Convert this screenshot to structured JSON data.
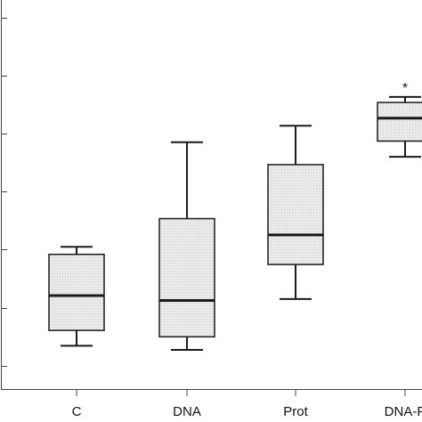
{
  "chart_data": {
    "type": "box",
    "categories": [
      "C",
      "DNA",
      "Prot",
      "DNA-P"
    ],
    "boxes": [
      {
        "whisker_low": 0.69,
        "q1": 1.22,
        "median": 2.42,
        "q3": 3.84,
        "whisker_high": 4.1,
        "annotation": ""
      },
      {
        "whisker_low": 0.55,
        "q1": 1.0,
        "median": 2.25,
        "q3": 5.07,
        "whisker_high": 7.7,
        "annotation": ""
      },
      {
        "whisker_low": 2.3,
        "q1": 3.49,
        "median": 4.51,
        "q3": 6.93,
        "whisker_high": 8.27,
        "annotation": ""
      },
      {
        "whisker_low": 7.2,
        "q1": 7.74,
        "median": 8.53,
        "q3": 9.07,
        "whisker_high": 9.26,
        "annotation": "*"
      }
    ],
    "ylim": [
      -0.8,
      12.6
    ],
    "grid": false,
    "legend": "none",
    "colors": {
      "box_fill": "#ebebeb",
      "stroke": "#1a1a1a",
      "axis": "#444444"
    }
  }
}
